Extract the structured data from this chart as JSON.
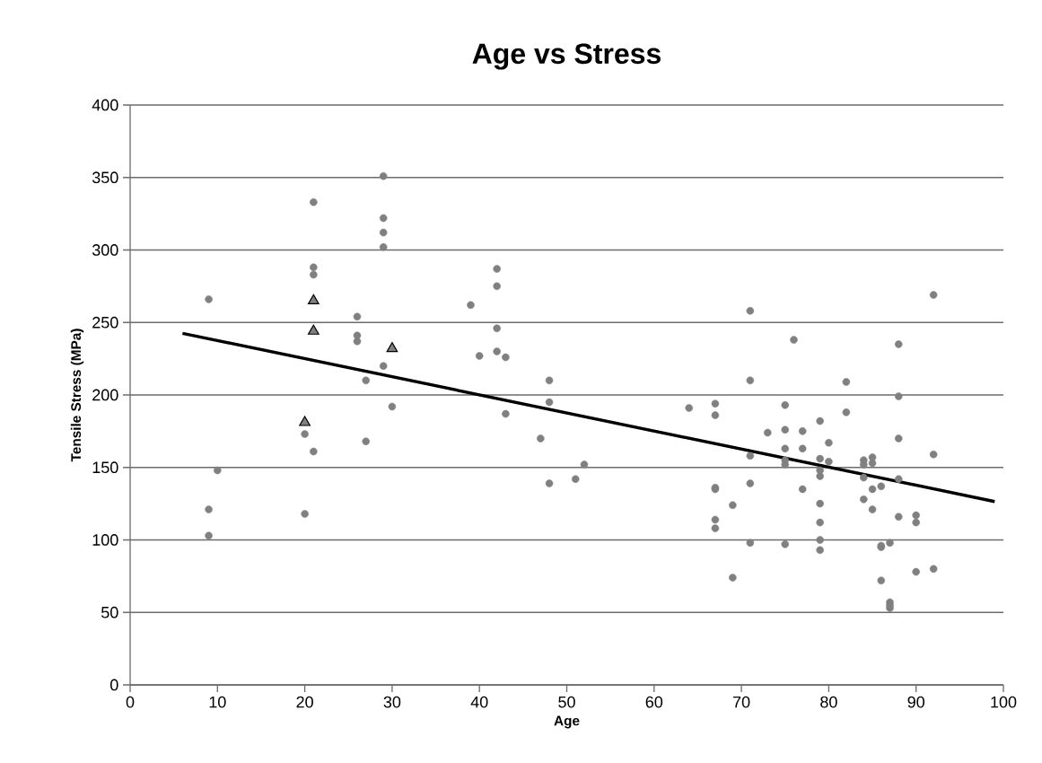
{
  "chart_data": {
    "type": "scatter",
    "title": "Age vs Stress",
    "xlabel": "Age",
    "ylabel": "Tensile Stress (MPa)",
    "xlim": [
      0,
      100
    ],
    "xticks": [
      0,
      10,
      20,
      30,
      40,
      50,
      60,
      70,
      80,
      90,
      100
    ],
    "ylim": [
      0,
      400
    ],
    "yticks": [
      0,
      50,
      100,
      150,
      200,
      250,
      300,
      350,
      400
    ],
    "grid": "y",
    "series": [
      {
        "marker": "circle",
        "color": "#808080",
        "x": [
          9,
          9,
          9,
          10,
          20,
          20,
          21,
          21,
          21,
          21,
          26,
          26,
          26,
          27,
          27,
          29,
          29,
          29,
          29,
          29,
          30,
          39,
          40,
          42,
          42,
          42,
          42,
          43,
          43,
          47,
          48,
          48,
          48,
          51,
          52,
          64,
          67,
          67,
          67,
          67,
          67,
          67,
          69,
          69,
          71,
          71,
          71,
          71,
          71,
          73,
          75,
          75,
          75,
          75,
          75,
          75,
          76,
          77,
          77,
          77,
          79,
          79,
          79,
          79,
          79,
          79,
          79,
          79,
          80,
          80,
          82,
          82,
          84,
          84,
          84,
          84,
          85,
          85,
          85,
          85,
          86,
          86,
          86,
          86,
          87,
          87,
          87,
          87,
          88,
          88,
          88,
          88,
          88,
          90,
          90,
          90,
          92,
          92,
          92
        ],
        "values": [
          266,
          121,
          103,
          148,
          173,
          118,
          333,
          288,
          283,
          161,
          254,
          241,
          237,
          210,
          168,
          351,
          322,
          312,
          302,
          220,
          192,
          262,
          227,
          287,
          275,
          246,
          230,
          226,
          187,
          170,
          210,
          195,
          139,
          142,
          152,
          191,
          194,
          186,
          136,
          135,
          114,
          108,
          124,
          74,
          258,
          210,
          158,
          139,
          98,
          174,
          193,
          176,
          163,
          155,
          152,
          97,
          238,
          175,
          163,
          135,
          182,
          156,
          148,
          144,
          125,
          112,
          100,
          93,
          167,
          154,
          209,
          188,
          155,
          152,
          143,
          128,
          157,
          153,
          135,
          121,
          137,
          96,
          95,
          72,
          98,
          57,
          55,
          53,
          235,
          199,
          170,
          142,
          116,
          117,
          112,
          78,
          269,
          159,
          80
        ]
      },
      {
        "marker": "triangle",
        "color": "#808080",
        "x": [
          20,
          21,
          21,
          30
        ],
        "values": [
          181,
          265,
          244,
          232
        ]
      },
      {
        "type": "line",
        "marker": "none",
        "color": "#000000",
        "x": [
          6,
          99
        ],
        "values": [
          242.5,
          126.5
        ]
      }
    ]
  }
}
